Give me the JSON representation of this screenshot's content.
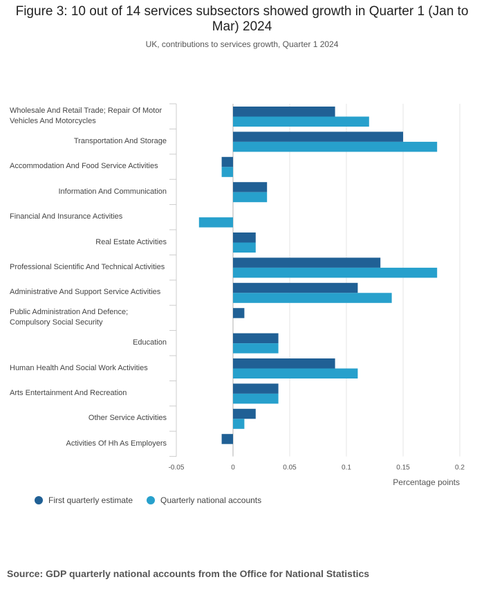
{
  "chart_data": {
    "type": "bar",
    "orientation": "horizontal",
    "title": "Figure 3: 10 out of 14 services subsectors showed growth in Quarter 1 (Jan to Mar) 2024",
    "subtitle": "UK, contributions to services growth, Quarter 1 2024",
    "xlabel": "Percentage points",
    "ylabel": "",
    "xlim": [
      -0.05,
      0.2
    ],
    "xticks": [
      -0.05,
      0,
      0.05,
      0.1,
      0.15,
      0.2
    ],
    "xtick_labels": [
      "-0.05",
      "0",
      "0.05",
      "0.1",
      "0.15",
      "0.2"
    ],
    "categories": [
      "Wholesale And Retail Trade; Repair Of Motor Vehicles And Motorcycles",
      "Transportation And Storage",
      "Accommodation And Food Service Activities",
      "Information And Communication",
      "Financial And Insurance Activities",
      "Real Estate Activities",
      "Professional Scientific And Technical Activities",
      "Administrative And Support Service Activities",
      "Public Administration And Defence; Compulsory Social Security",
      "Education",
      "Human Health And Social Work Activities",
      "Arts Entertainment And Recreation",
      "Other Service Activities",
      "Activities Of Hh As Employers"
    ],
    "series": [
      {
        "name": "First quarterly estimate",
        "color": "#206095",
        "values": [
          0.09,
          0.15,
          -0.01,
          0.03,
          0,
          0.02,
          0.13,
          0.11,
          0.01,
          0.04,
          0.09,
          0.04,
          0.02,
          -0.01
        ]
      },
      {
        "name": "Quarterly national accounts",
        "color": "#27a0cc",
        "values": [
          0.12,
          0.18,
          -0.01,
          0.03,
          -0.03,
          0.02,
          0.18,
          0.14,
          0,
          0.04,
          0.11,
          0.04,
          0.01,
          0
        ]
      }
    ],
    "legend_position": "bottom-left",
    "grid": true
  },
  "source": "Source: GDP quarterly national accounts from the Office for National Statistics"
}
